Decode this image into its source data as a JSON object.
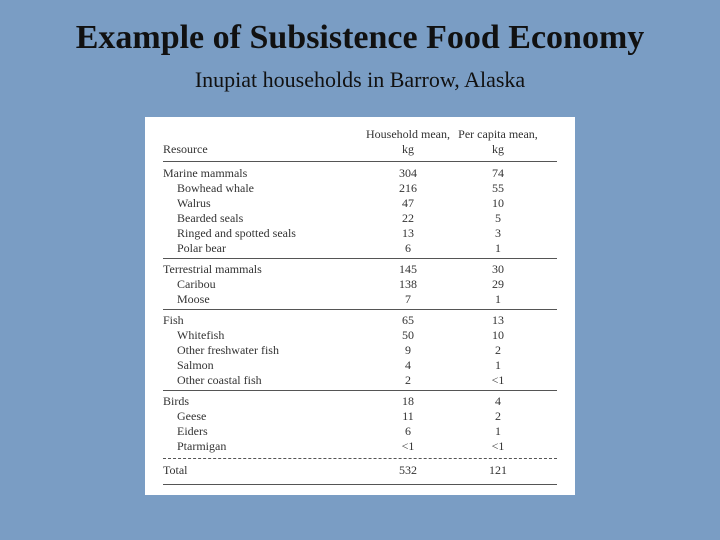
{
  "slide_bg": "#7a9dc4",
  "title": "Example of Subsistence Food Economy",
  "subtitle": "Inupiat households in Barrow, Alaska",
  "table": {
    "columns": {
      "resource": "Resource",
      "household": "Household mean, kg",
      "percapita": "Per capita mean, kg"
    },
    "groups": [
      {
        "name": "Marine mammals",
        "household": "304",
        "percapita": "74",
        "items": [
          {
            "name": "Bowhead whale",
            "household": "216",
            "percapita": "55"
          },
          {
            "name": "Walrus",
            "household": "47",
            "percapita": "10"
          },
          {
            "name": "Bearded seals",
            "household": "22",
            "percapita": "5"
          },
          {
            "name": "Ringed and spotted seals",
            "household": "13",
            "percapita": "3"
          },
          {
            "name": "Polar bear",
            "household": "6",
            "percapita": "1"
          }
        ]
      },
      {
        "name": "Terrestrial mammals",
        "household": "145",
        "percapita": "30",
        "items": [
          {
            "name": "Caribou",
            "household": "138",
            "percapita": "29"
          },
          {
            "name": "Moose",
            "household": "7",
            "percapita": "1"
          }
        ]
      },
      {
        "name": "Fish",
        "household": "65",
        "percapita": "13",
        "items": [
          {
            "name": "Whitefish",
            "household": "50",
            "percapita": "10"
          },
          {
            "name": "Other freshwater fish",
            "household": "9",
            "percapita": "2"
          },
          {
            "name": "Salmon",
            "household": "4",
            "percapita": "1"
          },
          {
            "name": "Other coastal fish",
            "household": "2",
            "percapita": "<1"
          }
        ]
      },
      {
        "name": "Birds",
        "household": "18",
        "percapita": "4",
        "items": [
          {
            "name": "Geese",
            "household": "11",
            "percapita": "2"
          },
          {
            "name": "Eiders",
            "household": "6",
            "percapita": "1"
          },
          {
            "name": "Ptarmigan",
            "household": "<1",
            "percapita": "<1"
          }
        ]
      }
    ],
    "total": {
      "name": "Total",
      "household": "532",
      "percapita": "121"
    }
  }
}
